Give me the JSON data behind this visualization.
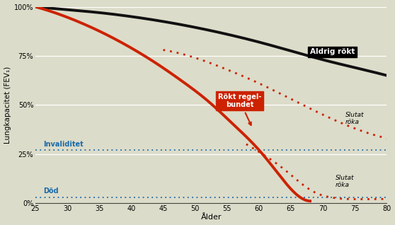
{
  "background_color": "#dcdcca",
  "plot_bg": "#dcdcca",
  "xlim": [
    25,
    80
  ],
  "ylim": [
    0,
    100
  ],
  "xlabel": "Ålder",
  "ylabel": "Lungkapacitet (FEV₁)",
  "yticks": [
    0,
    25,
    50,
    75,
    100
  ],
  "ytick_labels": [
    "0%",
    "25%",
    "50%",
    "75%",
    "100%"
  ],
  "xticks": [
    25,
    30,
    35,
    40,
    45,
    50,
    55,
    60,
    65,
    70,
    75,
    80
  ],
  "never_smoked_color": "#111111",
  "regular_smoker_color": "#cc2200",
  "invaliditet_color": "#1a6aaa",
  "dod_color": "#1a6aaa",
  "never_smoked_x": [
    25,
    30,
    35,
    40,
    45,
    50,
    55,
    60,
    65,
    70,
    75,
    80
  ],
  "never_smoked_y": [
    100,
    98.5,
    97,
    95,
    92.5,
    89.5,
    86,
    82,
    77.5,
    73,
    69,
    65
  ],
  "regular_smoker_x": [
    25,
    28,
    32,
    36,
    40,
    44,
    48,
    52,
    56,
    60,
    63,
    66,
    68
  ],
  "regular_smoker_y": [
    100,
    97,
    92,
    86,
    79,
    71,
    62,
    52,
    40,
    27,
    15,
    4,
    1
  ],
  "quit_upper_x": [
    45,
    50,
    55,
    60,
    65,
    70,
    75,
    80
  ],
  "quit_upper_y": [
    78,
    74,
    68,
    61,
    53,
    45,
    38,
    33
  ],
  "quit_lower_x": [
    58,
    61,
    64,
    67,
    69,
    71,
    74,
    78,
    80
  ],
  "quit_lower_y": [
    30,
    24,
    17,
    9,
    5,
    3,
    2,
    2,
    2
  ],
  "invaliditet_y": 27,
  "dod_y": 3,
  "invaliditet_label": "Invaliditet",
  "dod_label": "Död",
  "never_label": "Aldrig rökt",
  "regular_label": "Rökt regel-\nbundet",
  "quit_upper_label": "Slutat\nröka",
  "quit_lower_label": "Slutat\nröka"
}
